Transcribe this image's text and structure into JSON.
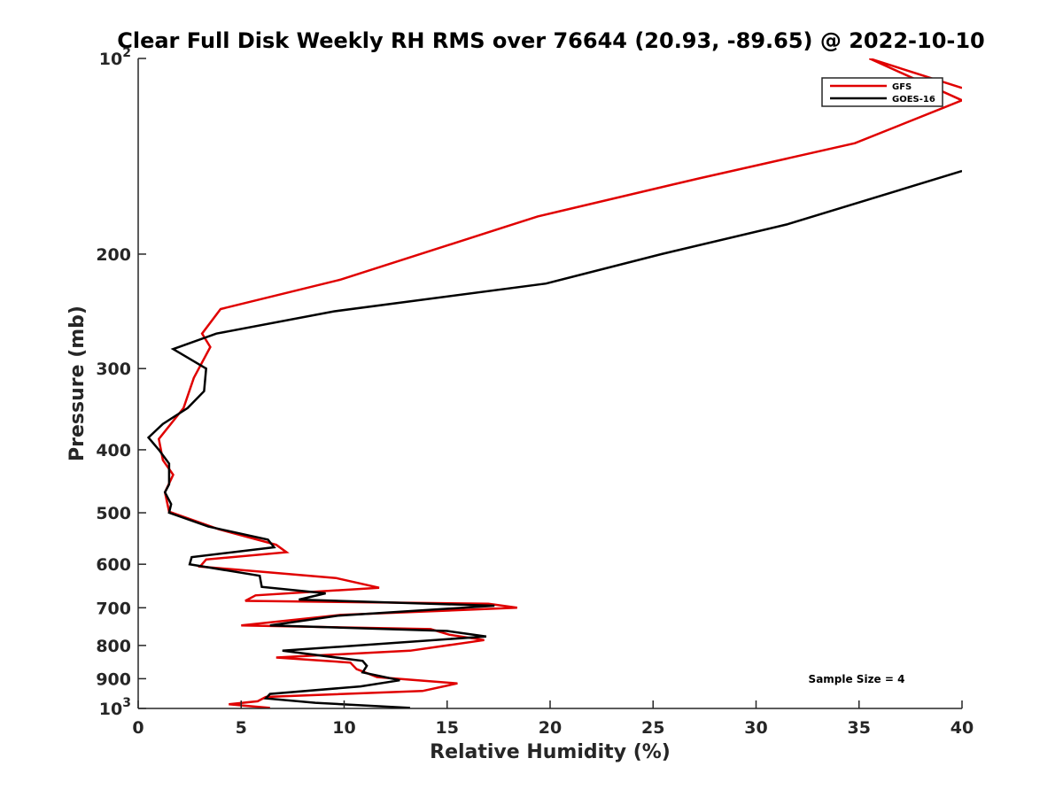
{
  "chart_data": {
    "type": "line",
    "title": "Clear Full Disk Weekly RH RMS over 76644 (20.93, -89.65) @ 2022-10-10",
    "xlabel": "Relative Humidity (%)",
    "ylabel": "Pressure (mb)",
    "xlim": [
      0,
      40
    ],
    "ylim": [
      100,
      1000
    ],
    "yscale": "log",
    "yreversed": true,
    "x_ticks": [
      0,
      5,
      10,
      15,
      20,
      25,
      30,
      35,
      40
    ],
    "x_tick_labels": [
      "0",
      "5",
      "10",
      "15",
      "20",
      "25",
      "30",
      "35",
      "40"
    ],
    "y_ticks": [
      {
        "value": 100,
        "base": "10",
        "exp": "2"
      },
      {
        "value": 200,
        "label": "200"
      },
      {
        "value": 300,
        "label": "300"
      },
      {
        "value": 400,
        "label": "400"
      },
      {
        "value": 500,
        "label": "500"
      },
      {
        "value": 600,
        "label": "600"
      },
      {
        "value": 700,
        "label": "700"
      },
      {
        "value": 800,
        "label": "800"
      },
      {
        "value": 900,
        "label": "900"
      },
      {
        "value": 1000,
        "base": "10",
        "exp": "3"
      }
    ],
    "legend": {
      "position": "top-right",
      "entries": [
        "GFS",
        "GOES-16"
      ]
    },
    "annotation": "Sample Size = 4",
    "series": [
      {
        "name": "GFS",
        "color": "#e00000",
        "points": [
          [
            40,
            111
          ],
          [
            35.5,
            100
          ],
          [
            40,
            116
          ],
          [
            34.8,
            135
          ],
          [
            27.2,
            153
          ],
          [
            19.4,
            175
          ],
          [
            9.8,
            219
          ],
          [
            4.0,
            243
          ],
          [
            3.1,
            265
          ],
          [
            3.5,
            278
          ],
          [
            2.7,
            310
          ],
          [
            2.2,
            345
          ],
          [
            1.0,
            385
          ],
          [
            1.2,
            415
          ],
          [
            1.7,
            437
          ],
          [
            1.3,
            465
          ],
          [
            1.5,
            498
          ],
          [
            3.9,
            530
          ],
          [
            6.7,
            560
          ],
          [
            7.2,
            575
          ],
          [
            3.3,
            590
          ],
          [
            3.0,
            605
          ],
          [
            9.6,
            630
          ],
          [
            11.7,
            652
          ],
          [
            5.7,
            670
          ],
          [
            5.2,
            683
          ],
          [
            17.0,
            690
          ],
          [
            18.4,
            700
          ],
          [
            9.8,
            718
          ],
          [
            5.0,
            745
          ],
          [
            14.2,
            755
          ],
          [
            15.1,
            770
          ],
          [
            16.8,
            785
          ],
          [
            13.2,
            815
          ],
          [
            6.7,
            835
          ],
          [
            10.3,
            850
          ],
          [
            10.6,
            870
          ],
          [
            11.6,
            895
          ],
          [
            15.5,
            915
          ],
          [
            13.8,
            940
          ],
          [
            6.2,
            960
          ],
          [
            5.8,
            975
          ],
          [
            4.4,
            985
          ],
          [
            5.1,
            990
          ],
          [
            6.4,
            998
          ]
        ]
      },
      {
        "name": "GOES-16",
        "color": "#000000",
        "points": [
          [
            40,
            149
          ],
          [
            31.5,
            180
          ],
          [
            25.4,
            200
          ],
          [
            19.8,
            222
          ],
          [
            9.5,
            245
          ],
          [
            3.8,
            265
          ],
          [
            1.7,
            280
          ],
          [
            3.3,
            300
          ],
          [
            3.2,
            325
          ],
          [
            2.4,
            345
          ],
          [
            1.2,
            365
          ],
          [
            0.5,
            383
          ],
          [
            1.0,
            400
          ],
          [
            1.5,
            420
          ],
          [
            1.5,
            452
          ],
          [
            1.3,
            465
          ],
          [
            1.6,
            485
          ],
          [
            1.5,
            500
          ],
          [
            3.4,
            525
          ],
          [
            6.3,
            550
          ],
          [
            6.6,
            565
          ],
          [
            2.6,
            585
          ],
          [
            2.5,
            600
          ],
          [
            5.9,
            625
          ],
          [
            6.0,
            650
          ],
          [
            9.1,
            665
          ],
          [
            7.8,
            680
          ],
          [
            17.3,
            695
          ],
          [
            9.7,
            720
          ],
          [
            6.4,
            745
          ],
          [
            15.0,
            760
          ],
          [
            16.9,
            775
          ],
          [
            7.0,
            815
          ],
          [
            10.9,
            845
          ],
          [
            11.1,
            860
          ],
          [
            10.9,
            880
          ],
          [
            12.7,
            905
          ],
          [
            10.8,
            925
          ],
          [
            6.4,
            950
          ],
          [
            6.2,
            965
          ],
          [
            8.6,
            980
          ],
          [
            13.2,
            998
          ]
        ]
      }
    ]
  }
}
